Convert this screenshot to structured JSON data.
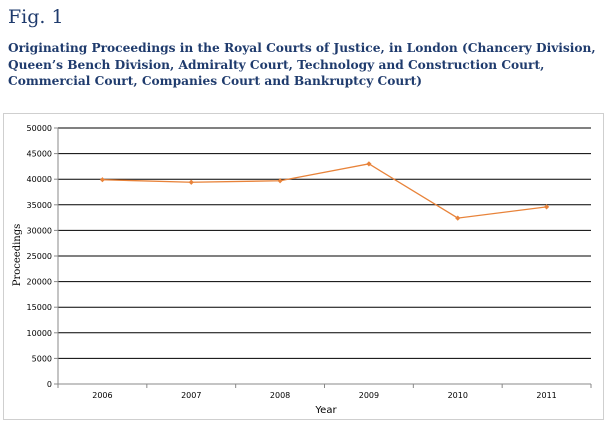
{
  "figure_label": "Fig. 1",
  "title": "Originating Proceedings in the Royal Courts of Justice, in London (Chancery Division, Queen’s Bench Division, Admiralty Court, Technology and Construction Court, Commercial Court, Companies Court and Bankruptcy Court)",
  "chart_data": {
    "type": "line",
    "title": "",
    "xlabel": "Year",
    "ylabel": "Proceedings",
    "categories": [
      "2006",
      "2007",
      "2008",
      "2009",
      "2010",
      "2011"
    ],
    "series": [
      {
        "values": [
          39900,
          39400,
          39700,
          43000,
          32400,
          34600
        ]
      }
    ],
    "ylim": [
      0,
      50000
    ],
    "yticks": [
      0,
      5000,
      10000,
      15000,
      20000,
      25000,
      30000,
      35000,
      40000,
      45000,
      50000
    ],
    "grid": true,
    "legend": "none",
    "colors": {
      "line": "#e8833a",
      "grid": "#000000",
      "axis": "#888888"
    }
  }
}
